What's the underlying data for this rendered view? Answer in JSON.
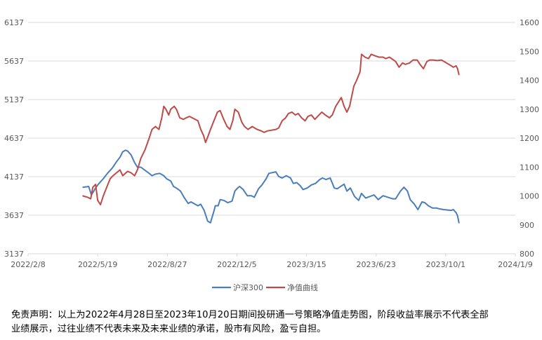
{
  "chart_data": {
    "type": "line",
    "title": "",
    "xlabel": "",
    "ylabel": "",
    "x_ticks": [
      "2022/2/8",
      "2022/5/19",
      "2022/8/27",
      "2022/12/5",
      "2023/3/15",
      "2023/6/23",
      "2023/10/1",
      "2024/1/9"
    ],
    "x_range": [
      "2022/2/8",
      "2024/1/9"
    ],
    "y_left_ticks": [
      "3137",
      "3637",
      "4137",
      "4637",
      "5137",
      "5637",
      "6137"
    ],
    "y_left_range": [
      3137,
      6137
    ],
    "y_right_ticks": [
      "800",
      "900",
      "1000",
      "1100",
      "1200",
      "1300",
      "1400",
      "1500",
      "1600"
    ],
    "y_right_range": [
      800,
      1600
    ],
    "grid": "horizontal",
    "legend_position": "bottom",
    "series": [
      {
        "name": "沪深300",
        "axis": "left",
        "color": "#4a7ebb",
        "points": [
          [
            "2022/4/28",
            4000
          ],
          [
            "2022/5/6",
            4010
          ],
          [
            "2022/5/10",
            3900
          ],
          [
            "2022/5/16",
            3990
          ],
          [
            "2022/5/20",
            4040
          ],
          [
            "2022/5/27",
            4110
          ],
          [
            "2022/6/2",
            4180
          ],
          [
            "2022/6/9",
            4250
          ],
          [
            "2022/6/15",
            4330
          ],
          [
            "2022/6/20",
            4390
          ],
          [
            "2022/6/24",
            4460
          ],
          [
            "2022/6/28",
            4480
          ],
          [
            "2022/7/1",
            4470
          ],
          [
            "2022/7/6",
            4420
          ],
          [
            "2022/7/11",
            4320
          ],
          [
            "2022/7/15",
            4260
          ],
          [
            "2022/7/20",
            4260
          ],
          [
            "2022/7/26",
            4220
          ],
          [
            "2022/8/1",
            4180
          ],
          [
            "2022/8/5",
            4150
          ],
          [
            "2022/8/10",
            4170
          ],
          [
            "2022/8/16",
            4180
          ],
          [
            "2022/8/22",
            4150
          ],
          [
            "2022/8/26",
            4110
          ],
          [
            "2022/9/1",
            4080
          ],
          [
            "2022/9/5",
            4010
          ],
          [
            "2022/9/9",
            3990
          ],
          [
            "2022/9/15",
            3950
          ],
          [
            "2022/9/20",
            3870
          ],
          [
            "2022/9/26",
            3790
          ],
          [
            "2022/9/30",
            3810
          ],
          [
            "2022/10/10",
            3760
          ],
          [
            "2022/10/14",
            3780
          ],
          [
            "2022/10/19",
            3700
          ],
          [
            "2022/10/24",
            3560
          ],
          [
            "2022/10/28",
            3540
          ],
          [
            "2022/11/2",
            3690
          ],
          [
            "2022/11/4",
            3760
          ],
          [
            "2022/11/8",
            3760
          ],
          [
            "2022/11/11",
            3840
          ],
          [
            "2022/11/16",
            3830
          ],
          [
            "2022/11/22",
            3800
          ],
          [
            "2022/11/28",
            3820
          ],
          [
            "2022/12/2",
            3950
          ],
          [
            "2022/12/6",
            3990
          ],
          [
            "2022/12/9",
            4010
          ],
          [
            "2022/12/14",
            3970
          ],
          [
            "2022/12/20",
            3890
          ],
          [
            "2022/12/26",
            3890
          ],
          [
            "2022/12/30",
            3870
          ],
          [
            "2023/1/5",
            3980
          ],
          [
            "2023/1/10",
            4030
          ],
          [
            "2023/1/16",
            4110
          ],
          [
            "2023/1/20",
            4180
          ],
          [
            "2023/1/30",
            4200
          ],
          [
            "2023/2/3",
            4140
          ],
          [
            "2023/2/8",
            4120
          ],
          [
            "2023/2/14",
            4150
          ],
          [
            "2023/2/20",
            4120
          ],
          [
            "2023/2/24",
            4050
          ],
          [
            "2023/3/1",
            4060
          ],
          [
            "2023/3/6",
            4020
          ],
          [
            "2023/3/10",
            3970
          ],
          [
            "2023/3/16",
            3990
          ],
          [
            "2023/3/22",
            4030
          ],
          [
            "2023/3/28",
            4050
          ],
          [
            "2023/4/3",
            4100
          ],
          [
            "2023/4/7",
            4120
          ],
          [
            "2023/4/12",
            4100
          ],
          [
            "2023/4/18",
            4120
          ],
          [
            "2023/4/24",
            3990
          ],
          [
            "2023/4/28",
            3980
          ],
          [
            "2023/5/8",
            4040
          ],
          [
            "2023/5/12",
            3950
          ],
          [
            "2023/5/17",
            3990
          ],
          [
            "2023/5/23",
            3880
          ],
          [
            "2023/5/29",
            3830
          ],
          [
            "2023/6/2",
            3920
          ],
          [
            "2023/6/8",
            3860
          ],
          [
            "2023/6/14",
            3880
          ],
          [
            "2023/6/20",
            3900
          ],
          [
            "2023/6/26",
            3840
          ],
          [
            "2023/7/3",
            3890
          ],
          [
            "2023/7/10",
            3870
          ],
          [
            "2023/7/17",
            3850
          ],
          [
            "2023/7/21",
            3850
          ],
          [
            "2023/7/28",
            3950
          ],
          [
            "2023/8/2",
            4000
          ],
          [
            "2023/8/7",
            3950
          ],
          [
            "2023/8/11",
            3840
          ],
          [
            "2023/8/17",
            3780
          ],
          [
            "2023/8/22",
            3710
          ],
          [
            "2023/8/28",
            3810
          ],
          [
            "2023/9/1",
            3800
          ],
          [
            "2023/9/6",
            3760
          ],
          [
            "2023/9/12",
            3730
          ],
          [
            "2023/9/18",
            3730
          ],
          [
            "2023/9/22",
            3720
          ],
          [
            "2023/9/28",
            3710
          ],
          [
            "2023/10/9",
            3700
          ],
          [
            "2023/10/12",
            3710
          ],
          [
            "2023/10/16",
            3670
          ],
          [
            "2023/10/18",
            3630
          ],
          [
            "2023/10/20",
            3540
          ]
        ]
      },
      {
        "name": "净值曲线",
        "axis": "right",
        "color": "#be4b48",
        "points": [
          [
            "2022/4/28",
            1000
          ],
          [
            "2022/5/5",
            995
          ],
          [
            "2022/5/9",
            990
          ],
          [
            "2022/5/12",
            1030
          ],
          [
            "2022/5/16",
            1040
          ],
          [
            "2022/5/19",
            985
          ],
          [
            "2022/5/23",
            970
          ],
          [
            "2022/5/27",
            1000
          ],
          [
            "2022/6/1",
            1030
          ],
          [
            "2022/6/6",
            1060
          ],
          [
            "2022/6/10",
            1070
          ],
          [
            "2022/6/15",
            1080
          ],
          [
            "2022/6/20",
            1090
          ],
          [
            "2022/6/24",
            1070
          ],
          [
            "2022/7/1",
            1085
          ],
          [
            "2022/7/6",
            1080
          ],
          [
            "2022/7/11",
            1070
          ],
          [
            "2022/7/15",
            1090
          ],
          [
            "2022/7/20",
            1130
          ],
          [
            "2022/7/26",
            1160
          ],
          [
            "2022/8/1",
            1200
          ],
          [
            "2022/8/5",
            1230
          ],
          [
            "2022/8/10",
            1240
          ],
          [
            "2022/8/15",
            1230
          ],
          [
            "2022/8/19",
            1270
          ],
          [
            "2022/8/22",
            1310
          ],
          [
            "2022/8/25",
            1300
          ],
          [
            "2022/8/29",
            1280
          ],
          [
            "2022/9/1",
            1300
          ],
          [
            "2022/9/6",
            1310
          ],
          [
            "2022/9/9",
            1300
          ],
          [
            "2022/9/14",
            1270
          ],
          [
            "2022/9/19",
            1265
          ],
          [
            "2022/9/23",
            1270
          ],
          [
            "2022/9/28",
            1275
          ],
          [
            "2022/10/10",
            1260
          ],
          [
            "2022/10/14",
            1230
          ],
          [
            "2022/10/18",
            1210
          ],
          [
            "2022/10/21",
            1185
          ],
          [
            "2022/10/25",
            1210
          ],
          [
            "2022/10/28",
            1230
          ],
          [
            "2022/11/2",
            1260
          ],
          [
            "2022/11/7",
            1290
          ],
          [
            "2022/11/11",
            1295
          ],
          [
            "2022/11/16",
            1265
          ],
          [
            "2022/11/21",
            1240
          ],
          [
            "2022/11/25",
            1230
          ],
          [
            "2022/11/29",
            1260
          ],
          [
            "2022/12/2",
            1300
          ],
          [
            "2022/12/7",
            1290
          ],
          [
            "2022/12/12",
            1255
          ],
          [
            "2022/12/16",
            1240
          ],
          [
            "2022/12/21",
            1230
          ],
          [
            "2022/12/27",
            1240
          ],
          [
            "2023/1/3",
            1230
          ],
          [
            "2023/1/9",
            1225
          ],
          [
            "2023/1/13",
            1220
          ],
          [
            "2023/1/18",
            1225
          ],
          [
            "2023/1/30",
            1230
          ],
          [
            "2023/2/3",
            1235
          ],
          [
            "2023/2/8",
            1260
          ],
          [
            "2023/2/13",
            1270
          ],
          [
            "2023/2/17",
            1285
          ],
          [
            "2023/2/22",
            1290
          ],
          [
            "2023/2/27",
            1280
          ],
          [
            "2023/3/3",
            1285
          ],
          [
            "2023/3/8",
            1270
          ],
          [
            "2023/3/13",
            1260
          ],
          [
            "2023/3/17",
            1275
          ],
          [
            "2023/3/22",
            1280
          ],
          [
            "2023/3/27",
            1265
          ],
          [
            "2023/3/31",
            1275
          ],
          [
            "2023/4/6",
            1290
          ],
          [
            "2023/4/11",
            1280
          ],
          [
            "2023/4/17",
            1270
          ],
          [
            "2023/4/21",
            1280
          ],
          [
            "2023/4/26",
            1310
          ],
          [
            "2023/5/4",
            1340
          ],
          [
            "2023/5/8",
            1310
          ],
          [
            "2023/5/12",
            1290
          ],
          [
            "2023/5/16",
            1310
          ],
          [
            "2023/5/22",
            1380
          ],
          [
            "2023/5/26",
            1400
          ],
          [
            "2023/5/31",
            1430
          ],
          [
            "2023/6/2",
            1490
          ],
          [
            "2023/6/7",
            1480
          ],
          [
            "2023/6/12",
            1475
          ],
          [
            "2023/6/16",
            1490
          ],
          [
            "2023/6/21",
            1485
          ],
          [
            "2023/6/27",
            1480
          ],
          [
            "2023/7/3",
            1480
          ],
          [
            "2023/7/7",
            1475
          ],
          [
            "2023/7/12",
            1480
          ],
          [
            "2023/7/18",
            1470
          ],
          [
            "2023/7/21",
            1465
          ],
          [
            "2023/7/26",
            1445
          ],
          [
            "2023/7/31",
            1460
          ],
          [
            "2023/8/4",
            1455
          ],
          [
            "2023/8/10",
            1460
          ],
          [
            "2023/8/15",
            1470
          ],
          [
            "2023/8/21",
            1470
          ],
          [
            "2023/8/25",
            1455
          ],
          [
            "2023/8/30",
            1440
          ],
          [
            "2023/9/4",
            1465
          ],
          [
            "2023/9/8",
            1470
          ],
          [
            "2023/9/13",
            1470
          ],
          [
            "2023/9/19",
            1468
          ],
          [
            "2023/9/25",
            1470
          ],
          [
            "2023/10/9",
            1450
          ],
          [
            "2023/10/12",
            1445
          ],
          [
            "2023/10/16",
            1450
          ],
          [
            "2023/10/18",
            1440
          ],
          [
            "2023/10/20",
            1420
          ]
        ]
      }
    ]
  },
  "disclaimer": {
    "line1": "免责声明：以上为2022年4月28日至2023年10月20日期间投研通一号策略净值走势图，阶段收益率展示不代表全部",
    "line2": "业绩展示，过往业绩不代表未来及未来业绩的承诺，股市有风险，盈亏自担。"
  }
}
